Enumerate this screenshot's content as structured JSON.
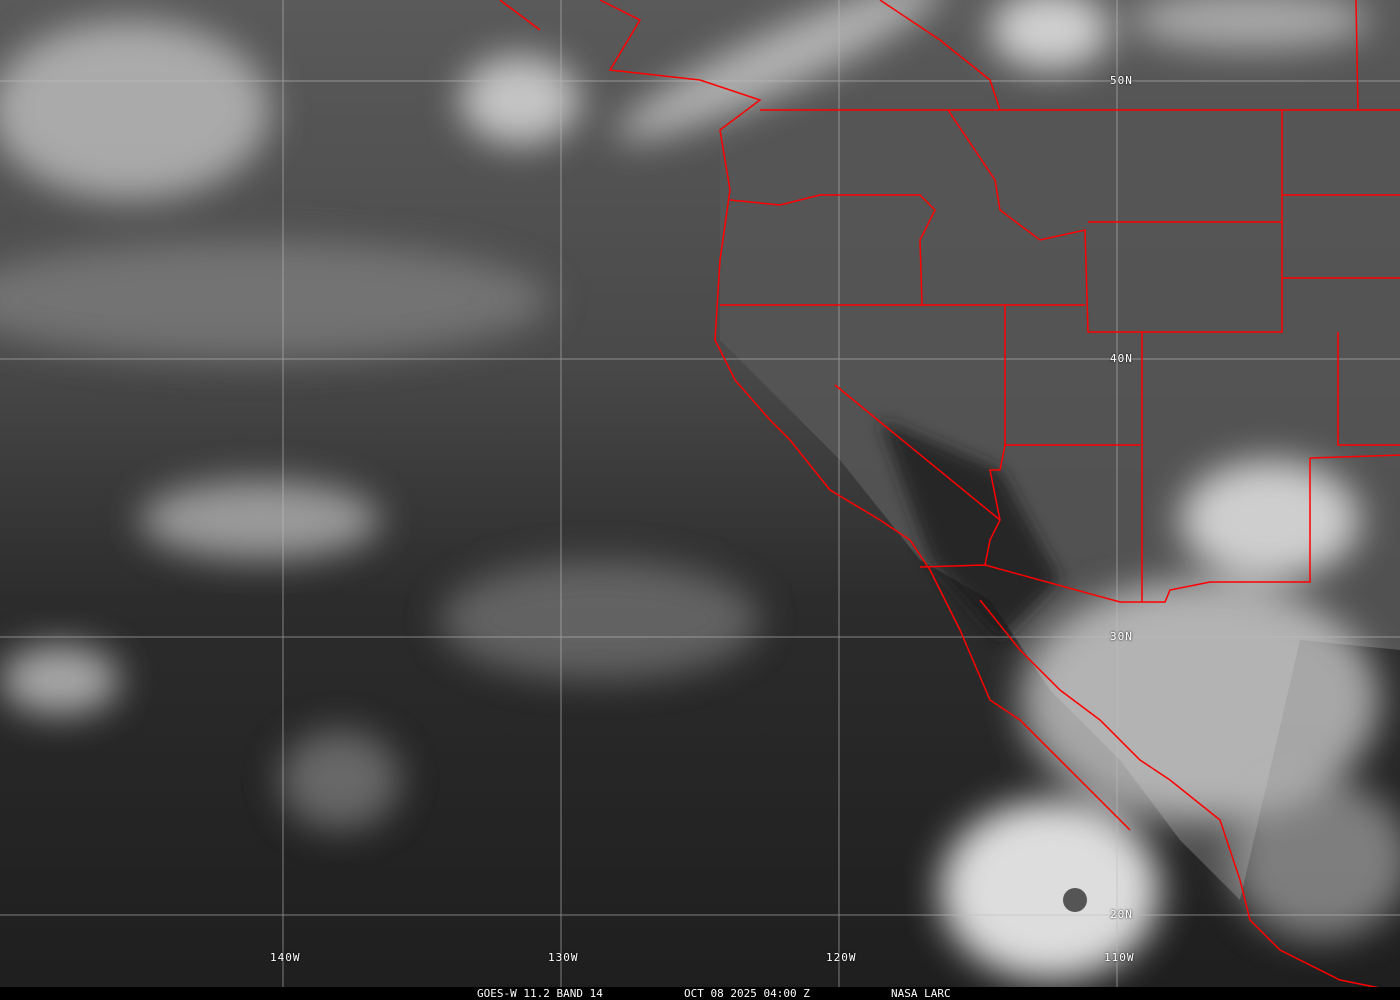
{
  "image": {
    "caption": {
      "satellite": "GOES-W 11.2 BAND 14",
      "datetime": "OCT 08 2025 04:00 Z",
      "source": "NASA LARC"
    },
    "longitude_labels": [
      "140W",
      "130W",
      "120W",
      "110W"
    ],
    "latitude_labels": [
      "50N",
      "40N",
      "30N",
      "20N"
    ],
    "colors": {
      "borders": "#ff0000",
      "grid": "#bfbfbf",
      "text": "#ffffff"
    }
  }
}
